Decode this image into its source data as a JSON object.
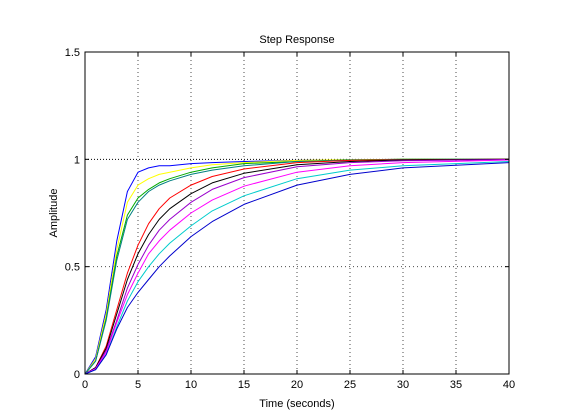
{
  "chart_data": {
    "type": "line",
    "title": "Step Response",
    "xlabel": "Time (seconds)",
    "ylabel": "Amplitude",
    "xlim": [
      0,
      40
    ],
    "ylim": [
      0,
      1.5
    ],
    "xticks": [
      "0",
      "5",
      "10",
      "15",
      "20",
      "25",
      "30",
      "35",
      "40"
    ],
    "yticks": [
      "0",
      "0.5",
      "1",
      "1.5"
    ],
    "grid": true,
    "reference_line": {
      "y": 1,
      "style": "dotted",
      "color": "#000000"
    },
    "series": [
      {
        "color": "#0000ff",
        "x": [
          0,
          1,
          2,
          3,
          4,
          5,
          6,
          7,
          8,
          10,
          12,
          15,
          20,
          25,
          30,
          40
        ],
        "y": [
          0,
          0.08,
          0.3,
          0.62,
          0.85,
          0.94,
          0.96,
          0.97,
          0.97,
          0.98,
          0.985,
          0.99,
          0.995,
          0.998,
          1.0,
          1.0
        ]
      },
      {
        "color": "#ffff00",
        "x": [
          0,
          1,
          2,
          3,
          4,
          5,
          6,
          7,
          8,
          10,
          12,
          15,
          20,
          25,
          30,
          40
        ],
        "y": [
          0,
          0.07,
          0.28,
          0.58,
          0.8,
          0.88,
          0.91,
          0.93,
          0.94,
          0.96,
          0.975,
          0.985,
          0.995,
          0.998,
          1.0,
          1.0
        ]
      },
      {
        "color": "#00aa00",
        "x": [
          0,
          1,
          2,
          3,
          4,
          5,
          6,
          7,
          8,
          10,
          12,
          15,
          20,
          25,
          30,
          40
        ],
        "y": [
          0,
          0.06,
          0.26,
          0.55,
          0.74,
          0.82,
          0.86,
          0.89,
          0.91,
          0.94,
          0.96,
          0.98,
          0.99,
          0.997,
          1.0,
          1.0
        ]
      },
      {
        "color": "#008080",
        "x": [
          0,
          1,
          2,
          3,
          4,
          5,
          6,
          7,
          8,
          10,
          12,
          15,
          20,
          25,
          30,
          40
        ],
        "y": [
          0,
          0.06,
          0.25,
          0.53,
          0.72,
          0.8,
          0.85,
          0.88,
          0.9,
          0.93,
          0.95,
          0.97,
          0.99,
          0.996,
          0.999,
          1.0
        ]
      },
      {
        "color": "#ff0000",
        "x": [
          0,
          1,
          2,
          3,
          4,
          5,
          6,
          7,
          8,
          10,
          12,
          15,
          20,
          25,
          30,
          40
        ],
        "y": [
          0,
          0.03,
          0.13,
          0.3,
          0.47,
          0.6,
          0.7,
          0.77,
          0.82,
          0.88,
          0.92,
          0.955,
          0.985,
          0.995,
          0.998,
          1.0
        ]
      },
      {
        "color": "#000000",
        "x": [
          0,
          1,
          2,
          3,
          4,
          5,
          6,
          7,
          8,
          10,
          12,
          15,
          20,
          25,
          30,
          40
        ],
        "y": [
          0,
          0.03,
          0.12,
          0.28,
          0.44,
          0.56,
          0.65,
          0.72,
          0.77,
          0.84,
          0.89,
          0.935,
          0.975,
          0.99,
          0.997,
          1.0
        ]
      },
      {
        "color": "#9900cc",
        "x": [
          0,
          1,
          2,
          3,
          4,
          5,
          6,
          7,
          8,
          10,
          12,
          15,
          20,
          25,
          30,
          40
        ],
        "y": [
          0,
          0.025,
          0.11,
          0.25,
          0.4,
          0.51,
          0.6,
          0.67,
          0.72,
          0.8,
          0.86,
          0.915,
          0.965,
          0.985,
          0.993,
          0.999
        ]
      },
      {
        "color": "#ff00ff",
        "x": [
          0,
          1,
          2,
          3,
          4,
          5,
          6,
          7,
          8,
          10,
          12,
          15,
          20,
          25,
          30,
          40
        ],
        "y": [
          0,
          0.025,
          0.1,
          0.24,
          0.37,
          0.47,
          0.56,
          0.62,
          0.67,
          0.75,
          0.81,
          0.875,
          0.94,
          0.97,
          0.985,
          0.997
        ]
      },
      {
        "color": "#00cccc",
        "x": [
          0,
          1,
          2,
          3,
          4,
          5,
          6,
          7,
          8,
          10,
          12,
          15,
          20,
          25,
          30,
          40
        ],
        "y": [
          0,
          0.02,
          0.09,
          0.22,
          0.34,
          0.43,
          0.5,
          0.56,
          0.61,
          0.69,
          0.76,
          0.83,
          0.91,
          0.95,
          0.97,
          0.99
        ]
      },
      {
        "color": "#0000cc",
        "x": [
          0,
          1,
          2,
          3,
          4,
          5,
          6,
          7,
          8,
          10,
          12,
          15,
          20,
          25,
          30,
          40
        ],
        "y": [
          0,
          0.02,
          0.09,
          0.21,
          0.31,
          0.38,
          0.44,
          0.5,
          0.55,
          0.64,
          0.71,
          0.79,
          0.88,
          0.93,
          0.96,
          0.985
        ]
      }
    ]
  }
}
